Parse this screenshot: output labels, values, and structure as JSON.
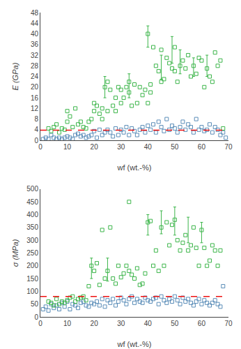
{
  "chart_data": [
    {
      "type": "scatter",
      "xlabel": "wf (wt.-%)",
      "ylabel": "E (GPa)",
      "xlim": [
        0,
        70
      ],
      "ylim": [
        0,
        48
      ],
      "xticks": [
        0,
        10,
        20,
        30,
        40,
        50,
        60,
        70
      ],
      "yticks": [
        0,
        4,
        8,
        12,
        16,
        20,
        24,
        28,
        32,
        36,
        40,
        44,
        48
      ],
      "grid": false,
      "reference_line": {
        "value": 3.8,
        "color": "#ee1111",
        "line_style": "dashed"
      },
      "series": [
        {
          "type": "scatter",
          "color": "#5b8db8",
          "marker": "square-open",
          "x": [
            1,
            2,
            3,
            4,
            5,
            6,
            7,
            8,
            9,
            10,
            11,
            12,
            13,
            14,
            15,
            16,
            17,
            18,
            19,
            20,
            21,
            22,
            23,
            24,
            25,
            26,
            27,
            28,
            29,
            30,
            31,
            32,
            33,
            34,
            35,
            36,
            37,
            38,
            39,
            40,
            41,
            42,
            43,
            44,
            45,
            46,
            47,
            48,
            49,
            50,
            51,
            52,
            53,
            54,
            55,
            56,
            57,
            58,
            59,
            60,
            61,
            62,
            63,
            64,
            65,
            66,
            67,
            68,
            69
          ],
          "values": [
            0.5,
            1,
            0.5,
            2,
            1,
            0.5,
            1,
            0.5,
            1,
            1.5,
            1,
            0.5,
            2,
            2.5,
            1.5,
            2,
            1,
            1.5,
            2,
            3.5,
            1,
            4,
            2,
            3,
            4,
            3,
            1.5,
            4.5,
            2,
            4,
            3,
            5,
            2,
            4.5,
            3.5,
            2,
            4,
            5,
            3,
            5.5,
            4,
            6,
            3,
            7,
            5,
            3.5,
            8,
            4,
            5.5,
            4.5,
            3,
            5,
            7,
            4,
            6,
            5,
            3,
            8,
            4,
            5,
            3.5,
            4,
            6,
            3,
            5,
            4,
            2,
            3,
            1
          ]
        },
        {
          "type": "scatter",
          "color": "#3cb54a",
          "marker": "square-open",
          "x": [
            3,
            4,
            5,
            6,
            7,
            8,
            9,
            10,
            10,
            11,
            12,
            13,
            14,
            15,
            16,
            17,
            18,
            19,
            20,
            20,
            21,
            22,
            23,
            23,
            24,
            25,
            25,
            26,
            27,
            28,
            28,
            29,
            30,
            30,
            31,
            32,
            33,
            33,
            34,
            35,
            36,
            37,
            38,
            39,
            40,
            40,
            41,
            41,
            42,
            43,
            44,
            45,
            45,
            46,
            47,
            48,
            49,
            50,
            50,
            51,
            52,
            53,
            54,
            55,
            56,
            57,
            58,
            59,
            60,
            61,
            62,
            63,
            64,
            65,
            66,
            67,
            68
          ],
          "values": [
            4.5,
            3.5,
            5,
            6,
            3,
            4.5,
            4,
            11,
            7,
            9,
            5,
            12,
            6,
            7,
            5,
            4.5,
            7,
            8,
            14,
            11,
            13,
            10,
            12,
            8,
            20,
            22,
            11,
            19,
            13,
            16,
            11,
            20,
            19,
            14,
            16,
            20,
            18,
            22,
            13,
            21,
            14,
            20,
            17,
            19,
            14,
            40,
            21,
            18,
            35,
            28,
            26,
            22,
            34,
            23,
            31,
            29,
            27,
            26,
            35,
            22,
            28,
            30,
            27,
            32,
            24,
            28,
            25,
            31,
            30,
            20,
            27,
            24,
            22,
            33,
            28,
            30,
            4.5
          ]
        },
        {
          "type": "errorbar",
          "color": "#3cb54a",
          "x": [
            24,
            33,
            40,
            45,
            49,
            52,
            57,
            62
          ],
          "values": [
            21,
            20,
            40,
            27,
            35,
            30,
            28,
            27
          ],
          "error_minus": [
            5,
            4,
            5,
            4,
            6,
            5,
            4,
            3
          ],
          "error_plus": [
            3,
            5,
            3,
            5,
            4,
            4,
            3,
            5
          ]
        }
      ]
    },
    {
      "type": "scatter",
      "xlabel": "wf (wt.-%)",
      "ylabel": "σ (MPa)",
      "xlim": [
        0,
        70
      ],
      "ylim": [
        0,
        500
      ],
      "xticks": [
        0,
        10,
        20,
        30,
        40,
        50,
        60,
        70
      ],
      "yticks": [
        0,
        50,
        100,
        150,
        200,
        250,
        300,
        350,
        400,
        450,
        500
      ],
      "grid": false,
      "reference_line": {
        "value": 80,
        "color": "#ee1111",
        "line_style": "dashed"
      },
      "series": [
        {
          "type": "scatter",
          "color": "#5b8db8",
          "marker": "square-open",
          "x": [
            1,
            2,
            3,
            4,
            5,
            6,
            7,
            8,
            9,
            10,
            11,
            12,
            13,
            14,
            15,
            16,
            17,
            18,
            19,
            20,
            21,
            22,
            23,
            24,
            25,
            26,
            27,
            28,
            29,
            30,
            31,
            32,
            33,
            34,
            35,
            36,
            37,
            38,
            39,
            40,
            41,
            42,
            43,
            44,
            45,
            46,
            47,
            48,
            49,
            50,
            51,
            52,
            53,
            54,
            55,
            56,
            57,
            58,
            59,
            60,
            61,
            62,
            63,
            64,
            65,
            66,
            67,
            68
          ],
          "values": [
            30,
            40,
            25,
            50,
            35,
            45,
            30,
            55,
            40,
            60,
            30,
            50,
            45,
            35,
            55,
            60,
            45,
            40,
            55,
            50,
            60,
            45,
            70,
            40,
            65,
            55,
            70,
            45,
            60,
            75,
            65,
            50,
            70,
            80,
            55,
            70,
            60,
            55,
            75,
            65,
            60,
            70,
            75,
            50,
            80,
            65,
            55,
            70,
            60,
            80,
            65,
            50,
            75,
            60,
            70,
            55,
            45,
            60,
            70,
            50,
            65,
            55,
            45,
            55,
            65,
            50,
            40,
            120
          ]
        },
        {
          "type": "scatter",
          "color": "#3cb54a",
          "marker": "square-open",
          "x": [
            3,
            4,
            5,
            6,
            7,
            8,
            9,
            10,
            11,
            12,
            13,
            14,
            15,
            16,
            17,
            18,
            19,
            20,
            21,
            22,
            23,
            24,
            25,
            26,
            27,
            28,
            29,
            30,
            31,
            32,
            33,
            34,
            35,
            36,
            37,
            38,
            39,
            40,
            41,
            42,
            43,
            44,
            45,
            46,
            47,
            48,
            49,
            50,
            51,
            52,
            53,
            54,
            55,
            56,
            57,
            58,
            59,
            60,
            61,
            62,
            63,
            64,
            65,
            66,
            67
          ],
          "values": [
            60,
            55,
            45,
            70,
            50,
            60,
            55,
            65,
            75,
            80,
            60,
            70,
            75,
            80,
            65,
            120,
            200,
            180,
            210,
            125,
            340,
            150,
            180,
            350,
            150,
            130,
            200,
            155,
            170,
            200,
            180,
            165,
            150,
            190,
            125,
            130,
            170,
            370,
            375,
            200,
            260,
            180,
            350,
            200,
            370,
            280,
            360,
            380,
            300,
            260,
            290,
            320,
            260,
            280,
            350,
            270,
            200,
            340,
            270,
            200,
            220,
            280,
            260,
            200,
            260
          ]
        },
        {
          "type": "scatter",
          "color": "#3cb54a",
          "marker": "square-open",
          "x": [
            33
          ],
          "values": [
            450
          ]
        },
        {
          "type": "errorbar",
          "color": "#3cb54a",
          "x": [
            19,
            25,
            40,
            45,
            50,
            55,
            60
          ],
          "values": [
            200,
            180,
            370,
            375,
            380,
            350,
            340
          ],
          "error_minus": [
            50,
            40,
            50,
            50,
            60,
            60,
            50
          ],
          "error_plus": [
            30,
            50,
            30,
            40,
            50,
            40,
            30
          ]
        }
      ]
    }
  ]
}
